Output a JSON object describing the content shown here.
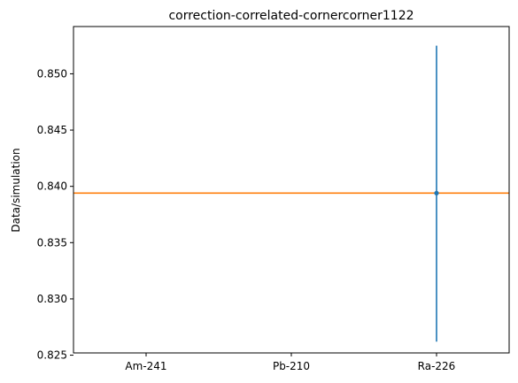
{
  "chart_data": {
    "type": "scatter",
    "title": "correction-correlated-cornercorner1122",
    "xlabel": "",
    "ylabel": "Data/simulation",
    "categories": [
      "Am-241",
      "Pb-210",
      "Ra-226"
    ],
    "ylim": [
      0.8252,
      0.8542
    ],
    "yticks": [
      "0.825",
      "0.830",
      "0.835",
      "0.840",
      "0.845",
      "0.850"
    ],
    "grid": false,
    "points": [
      {
        "category": "Ra-226",
        "y": 0.8394,
        "yerr_low": 0.8262,
        "yerr_high": 0.8525
      }
    ],
    "hline": {
      "y": 0.8394
    },
    "colors": {
      "points": "#1f77b4",
      "hline": "#ff7f0e",
      "axis": "#000000"
    }
  }
}
